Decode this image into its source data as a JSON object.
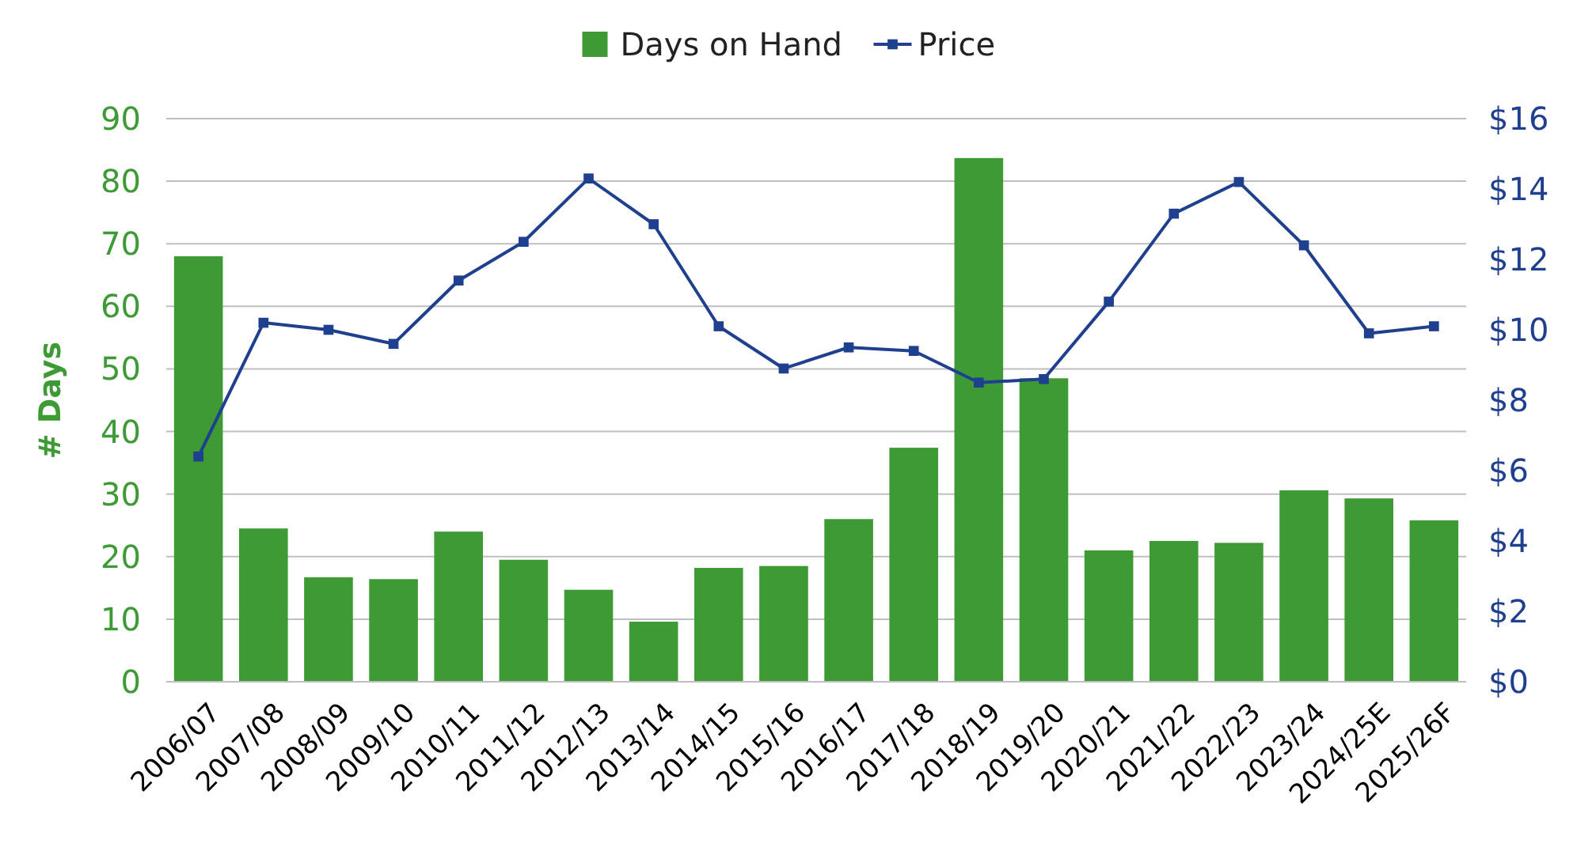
{
  "chart_data": {
    "type": "bar",
    "ylabel": "# Days",
    "categories": [
      "2006/07",
      "2007/08",
      "2008/09",
      "2009/10",
      "2010/11",
      "2011/12",
      "2012/13",
      "2013/14",
      "2014/15",
      "2015/16",
      "2016/17",
      "2017/18",
      "2018/19",
      "2019/20",
      "2020/21",
      "2021/22",
      "2022/23",
      "2023/24",
      "2024/25E",
      "2025/26F"
    ],
    "series": [
      {
        "name": "Days on Hand",
        "color": "#3d9a35",
        "values": [
          68.0,
          24.5,
          16.7,
          16.4,
          24.0,
          19.5,
          14.7,
          9.6,
          18.2,
          18.5,
          26.0,
          37.4,
          83.7,
          48.5,
          21.0,
          22.5,
          22.2,
          30.6,
          29.3,
          25.8
        ]
      },
      {
        "name": "Price",
        "type": "line",
        "axis": "y2",
        "marker": "square",
        "color": "#1f3f8f",
        "values": [
          6.4,
          10.2,
          10.0,
          9.6,
          11.4,
          12.5,
          14.3,
          13.0,
          10.1,
          8.9,
          9.5,
          9.4,
          8.5,
          8.6,
          10.8,
          13.3,
          14.2,
          12.4,
          9.9,
          10.1
        ]
      }
    ],
    "ylim": [
      0,
      90
    ],
    "yticks": [
      0,
      10,
      20,
      30,
      40,
      50,
      60,
      70,
      80,
      90
    ],
    "y2lim": [
      0,
      16
    ],
    "y2ticks": [
      {
        "value": 0,
        "label": "$0"
      },
      {
        "value": 2,
        "label": "$2"
      },
      {
        "value": 4,
        "label": "$4"
      },
      {
        "value": 6,
        "label": "$6"
      },
      {
        "value": 8,
        "label": "$8"
      },
      {
        "value": 10,
        "label": "$10"
      },
      {
        "value": 12,
        "label": "$12"
      },
      {
        "value": 14,
        "label": "$14"
      },
      {
        "value": 16,
        "label": "$16"
      }
    ],
    "grid": "y",
    "legend": "top"
  }
}
